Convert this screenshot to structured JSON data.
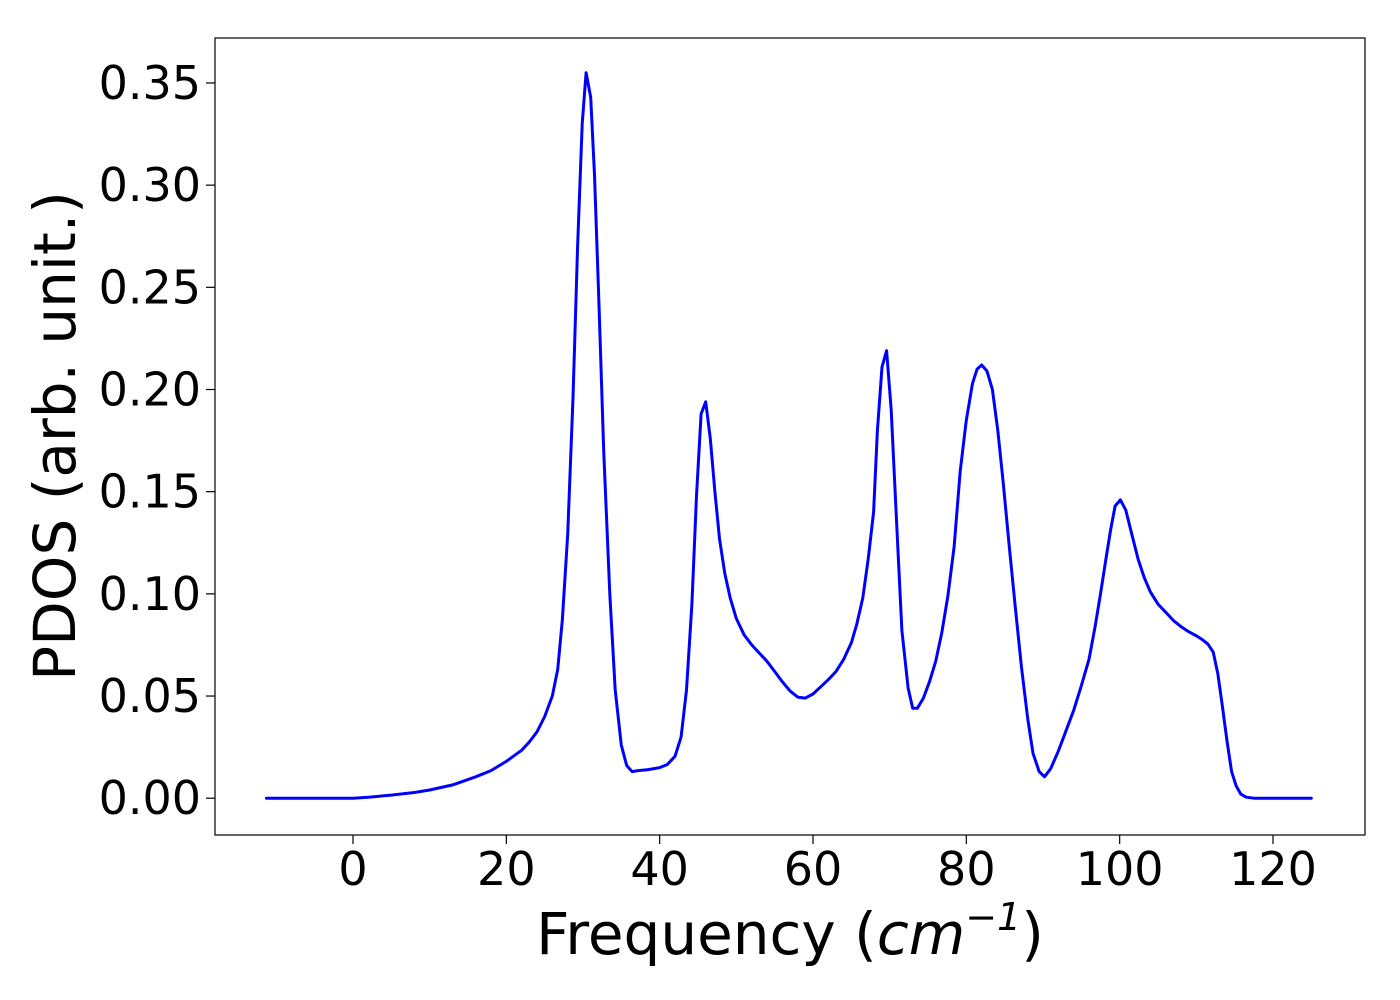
{
  "chart_data": {
    "type": "line",
    "title": "",
    "xlabel": {
      "prefix": "Frequency (",
      "unit_base": "cm",
      "unit_exponent": "−1",
      "suffix": ")"
    },
    "ylabel": "PDOS (arb. unit.)",
    "xlim": [
      -18,
      132
    ],
    "ylim": [
      -0.018,
      0.372
    ],
    "xticks": [
      0,
      20,
      40,
      60,
      80,
      100,
      120
    ],
    "xtick_labels": [
      "0",
      "20",
      "40",
      "60",
      "80",
      "100",
      "120"
    ],
    "yticks": [
      0.0,
      0.05,
      0.1,
      0.15,
      0.2,
      0.25,
      0.3,
      0.35
    ],
    "ytick_labels": [
      "0.00",
      "0.05",
      "0.10",
      "0.15",
      "0.20",
      "0.25",
      "0.30",
      "0.35"
    ],
    "grid": false,
    "legend": "none",
    "series": [
      {
        "color": "#0000ff",
        "x": [
          -11.3,
          -5,
          0,
          2,
          5,
          8,
          10,
          13,
          16,
          18,
          20,
          22,
          23,
          24,
          25,
          26,
          26.7,
          27.3,
          28,
          28.7,
          29.3,
          29.9,
          30.4,
          31.0,
          31.5,
          32.1,
          32.7,
          33.5,
          34.2,
          35.0,
          35.7,
          36.4,
          37.2,
          38.5,
          40,
          41,
          42,
          42.8,
          43.5,
          44.2,
          44.8,
          45.4,
          46.0,
          46.6,
          47.2,
          47.8,
          48.5,
          49.2,
          50,
          51,
          52,
          53,
          54,
          55,
          56,
          57,
          58,
          59,
          60,
          61,
          62,
          63,
          64,
          65,
          65.7,
          66.5,
          67.2,
          67.9,
          68.4,
          69.0,
          69.6,
          70.2,
          70.9,
          71.6,
          72.4,
          73.0,
          73.6,
          74.4,
          75.2,
          76.0,
          76.8,
          77.6,
          78.4,
          79.2,
          80,
          80.8,
          81.4,
          82.0,
          82.7,
          83.4,
          84.1,
          84.8,
          85.6,
          86.4,
          87.2,
          88.0,
          88.7,
          89.5,
          90.2,
          91,
          92,
          93,
          94,
          95,
          96,
          96.8,
          97.5,
          98.2,
          98.8,
          99.4,
          100.1,
          100.8,
          101.6,
          102.4,
          103.2,
          104,
          105,
          106,
          107,
          108,
          109,
          110,
          110.8,
          111.5,
          112.2,
          112.8,
          113.4,
          114.0,
          114.6,
          115.2,
          115.8,
          116.5,
          117.5,
          119,
          121,
          125
        ],
        "y": [
          0.0,
          0.0,
          0.0,
          0.0005,
          0.0015,
          0.0028,
          0.004,
          0.0065,
          0.0105,
          0.0135,
          0.018,
          0.0235,
          0.0275,
          0.0325,
          0.04,
          0.05,
          0.063,
          0.087,
          0.129,
          0.196,
          0.27,
          0.33,
          0.355,
          0.343,
          0.305,
          0.24,
          0.17,
          0.1,
          0.053,
          0.026,
          0.016,
          0.013,
          0.0135,
          0.014,
          0.015,
          0.0165,
          0.0205,
          0.03,
          0.053,
          0.095,
          0.148,
          0.188,
          0.194,
          0.176,
          0.15,
          0.127,
          0.11,
          0.098,
          0.088,
          0.08,
          0.075,
          0.071,
          0.067,
          0.062,
          0.057,
          0.0525,
          0.0495,
          0.049,
          0.051,
          0.0545,
          0.058,
          0.062,
          0.068,
          0.076,
          0.085,
          0.098,
          0.117,
          0.14,
          0.18,
          0.211,
          0.219,
          0.19,
          0.135,
          0.082,
          0.054,
          0.044,
          0.044,
          0.049,
          0.057,
          0.067,
          0.081,
          0.099,
          0.123,
          0.16,
          0.185,
          0.203,
          0.21,
          0.212,
          0.209,
          0.2,
          0.18,
          0.155,
          0.123,
          0.093,
          0.064,
          0.039,
          0.022,
          0.013,
          0.0105,
          0.0145,
          0.023,
          0.033,
          0.043,
          0.055,
          0.068,
          0.084,
          0.1,
          0.117,
          0.131,
          0.143,
          0.146,
          0.141,
          0.129,
          0.117,
          0.108,
          0.101,
          0.095,
          0.091,
          0.087,
          0.084,
          0.0815,
          0.0795,
          0.0775,
          0.0755,
          0.0715,
          0.061,
          0.045,
          0.028,
          0.013,
          0.006,
          0.002,
          0.0005,
          0.0,
          0.0,
          0.0,
          0.0
        ]
      }
    ]
  }
}
